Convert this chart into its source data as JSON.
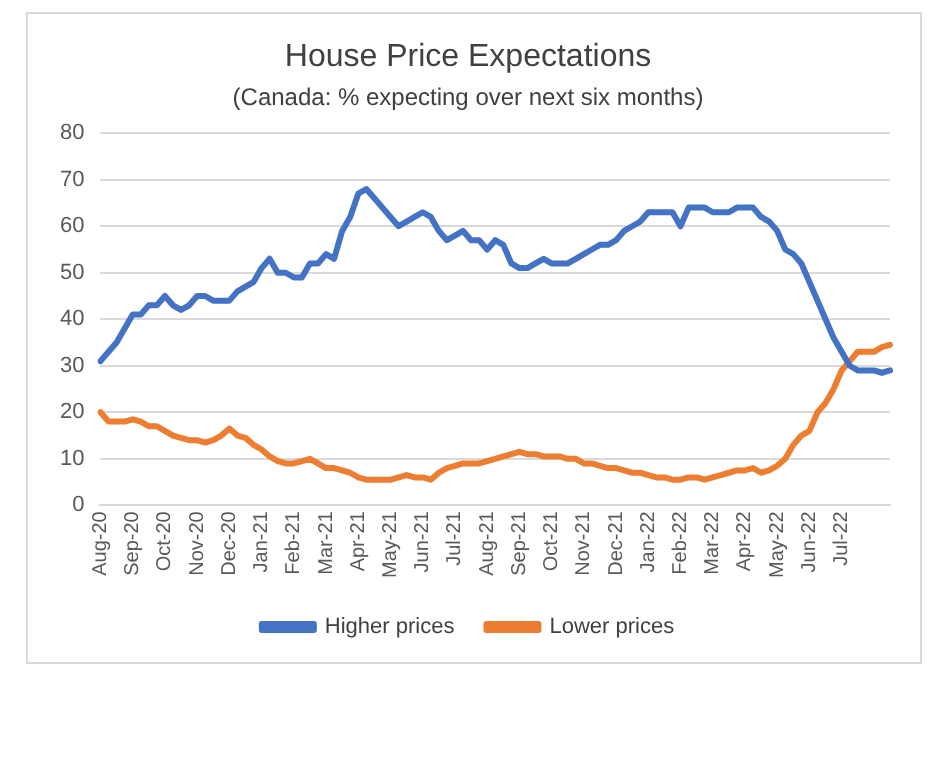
{
  "chart_data": {
    "type": "line",
    "title": "House Price Expectations",
    "subtitle": "(Canada: % expecting over next six months)",
    "categories": [
      "Aug-20",
      null,
      null,
      null,
      "Sep-20",
      null,
      null,
      null,
      "Oct-20",
      null,
      null,
      null,
      "Nov-20",
      null,
      null,
      null,
      "Dec-20",
      null,
      null,
      null,
      "Jan-21",
      null,
      null,
      null,
      "Feb-21",
      null,
      null,
      null,
      "Mar-21",
      null,
      null,
      null,
      "Apr-21",
      null,
      null,
      null,
      "May-21",
      null,
      null,
      null,
      "Jun-21",
      null,
      null,
      null,
      "Jul-21",
      null,
      null,
      null,
      "Aug-21",
      null,
      null,
      null,
      "Sep-21",
      null,
      null,
      null,
      "Oct-21",
      null,
      null,
      null,
      "Nov-21",
      null,
      null,
      null,
      "Dec-21",
      null,
      null,
      null,
      "Jan-22",
      null,
      null,
      null,
      "Feb-22",
      null,
      null,
      null,
      "Mar-22",
      null,
      null,
      null,
      "Apr-22",
      null,
      null,
      null,
      "May-22",
      null,
      null,
      null,
      "Jun-22",
      null,
      null,
      null,
      "Jul-22",
      null,
      null,
      null,
      null,
      null,
      null
    ],
    "series": [
      {
        "name": "Higher prices",
        "color": "#4472c4",
        "values": [
          31,
          33,
          35,
          38,
          41,
          41,
          43,
          43,
          45,
          43,
          42,
          43,
          45,
          45,
          44,
          44,
          44,
          46,
          47,
          48,
          51,
          53,
          50,
          50,
          49,
          49,
          52,
          52,
          54,
          53,
          59,
          62,
          67,
          68,
          66,
          64,
          62,
          60,
          61,
          62,
          63,
          62,
          59,
          57,
          58,
          59,
          57,
          57,
          55,
          57,
          56,
          52,
          51,
          51,
          52,
          53,
          52,
          52,
          52,
          53,
          54,
          55,
          56,
          56,
          57,
          59,
          60,
          61,
          63,
          63,
          63,
          63,
          60,
          64,
          64,
          64,
          63,
          63,
          63,
          64,
          64,
          64,
          62,
          61,
          59,
          55,
          54,
          52,
          48,
          44,
          40,
          36,
          33,
          30,
          29,
          29,
          29,
          28.5,
          29
        ]
      },
      {
        "name": "Lower prices",
        "color": "#ed7d31",
        "values": [
          20,
          18,
          18,
          18,
          18.5,
          18,
          17,
          17,
          16,
          15,
          14.5,
          14,
          14,
          13.5,
          14,
          15,
          16.5,
          15,
          14.5,
          13,
          12,
          10.5,
          9.5,
          9,
          9,
          9.5,
          10,
          9,
          8,
          8,
          7.5,
          7,
          6,
          5.5,
          5.5,
          5.5,
          5.5,
          6,
          6.5,
          6,
          6,
          5.5,
          7,
          8,
          8.5,
          9,
          9,
          9,
          9.5,
          10,
          10.5,
          11,
          11.5,
          11,
          11,
          10.5,
          10.5,
          10.5,
          10,
          10,
          9,
          9,
          8.5,
          8,
          8,
          7.5,
          7,
          7,
          6.5,
          6,
          6,
          5.5,
          5.5,
          6,
          6,
          5.5,
          6,
          6.5,
          7,
          7.5,
          7.5,
          8,
          7,
          7.5,
          8.5,
          10,
          13,
          15,
          16,
          20,
          22,
          25,
          29,
          31,
          33,
          33,
          33,
          34,
          34.5
        ]
      }
    ],
    "ylim": [
      0,
      80
    ],
    "yticks": [
      0,
      10,
      20,
      30,
      40,
      50,
      60,
      70,
      80
    ],
    "grid": "y",
    "legend": "bottom",
    "marker": "none",
    "line_style": "solid"
  }
}
